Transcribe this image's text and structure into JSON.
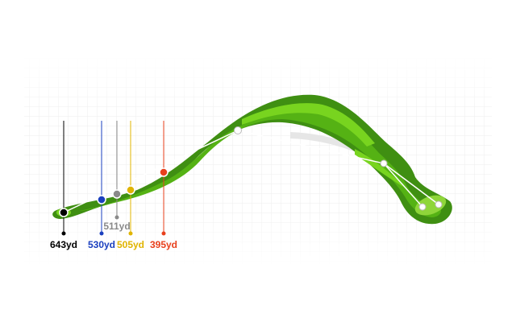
{
  "tees": [
    {
      "label": "643yd",
      "color": "#000000"
    },
    {
      "label": "530yd",
      "color": "#1a3fbf"
    },
    {
      "label": "511yd",
      "color": "#8a8a8a"
    },
    {
      "label": "505yd",
      "color": "#e0b400"
    },
    {
      "label": "395yd",
      "color": "#e8401c"
    }
  ]
}
